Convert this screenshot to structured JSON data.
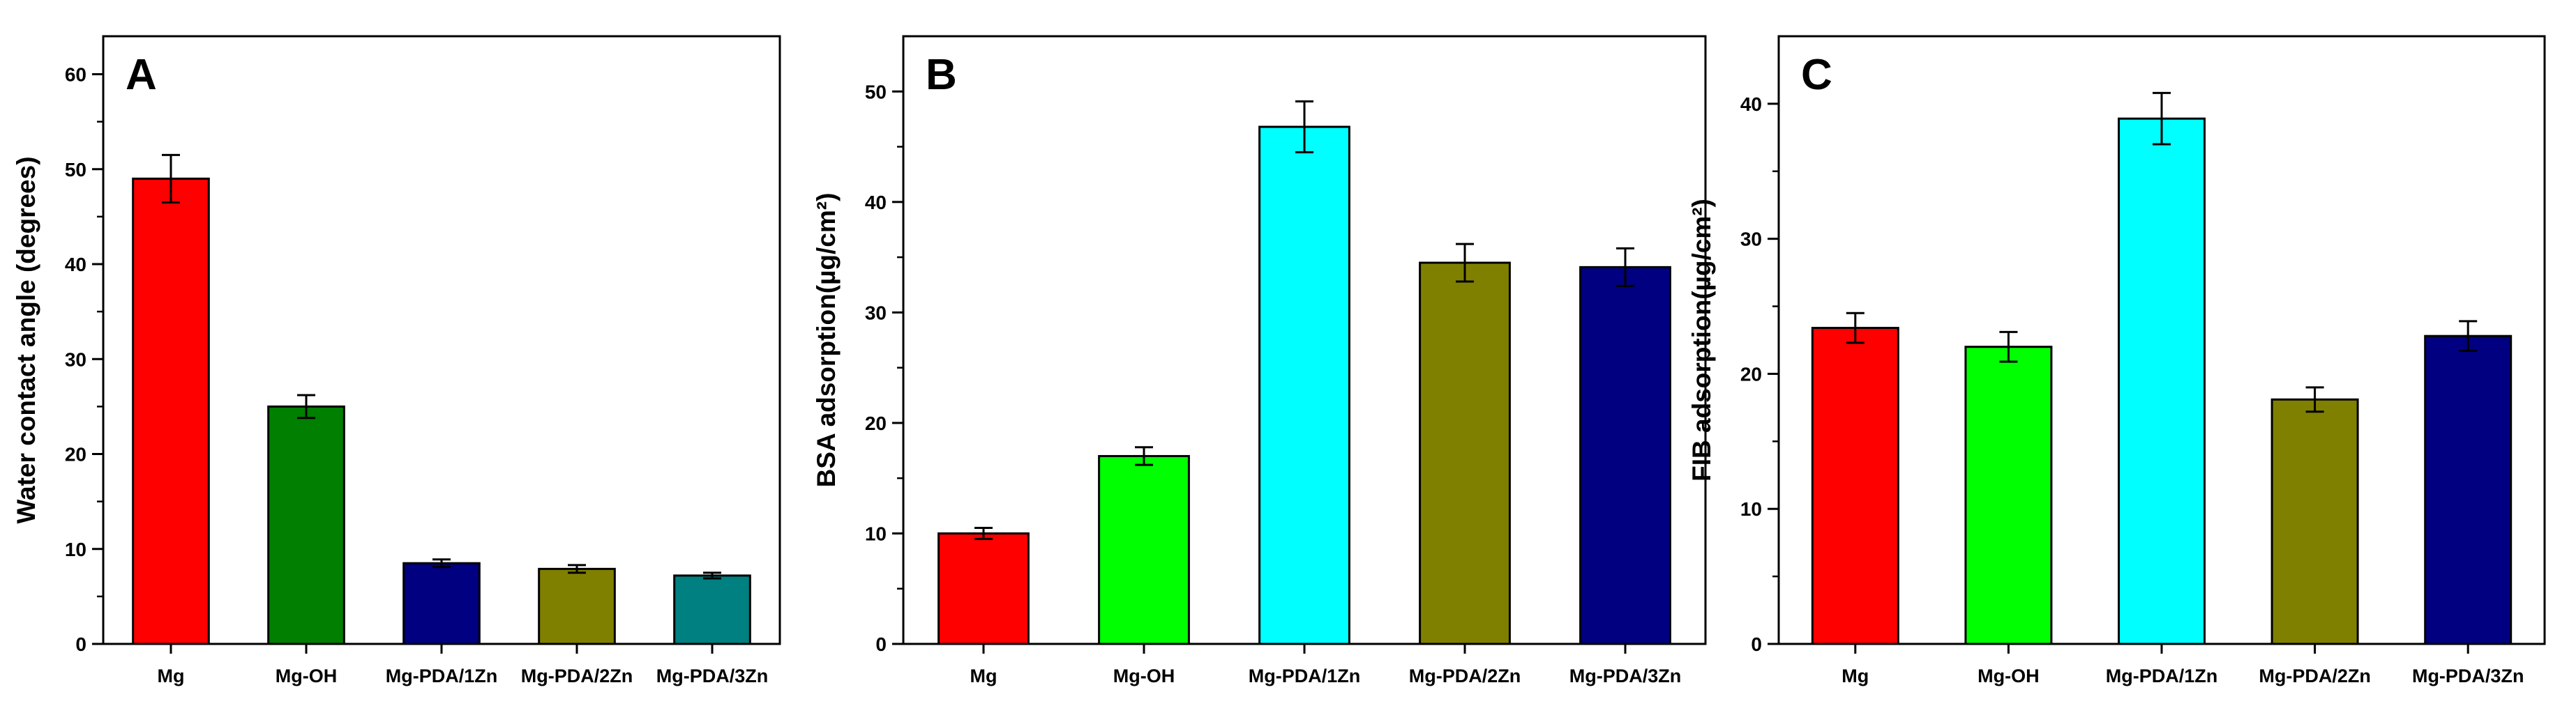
{
  "chart_data": [
    {
      "type": "bar",
      "panel_label": "A",
      "categories": [
        "Mg",
        "Mg-OH",
        "Mg-PDA/1Zn",
        "Mg-PDA/2Zn",
        "Mg-PDA/3Zn"
      ],
      "values": [
        49,
        25,
        8.5,
        7.9,
        7.2
      ],
      "errors": [
        2.5,
        1.2,
        0.4,
        0.4,
        0.3
      ],
      "colors": [
        "#ff0000",
        "#007f00",
        "#000080",
        "#808000",
        "#008080"
      ],
      "ylabel": "Water contact angle (degrees)",
      "ylim": [
        0,
        64
      ],
      "yticks": [
        0,
        10,
        20,
        30,
        40,
        50,
        60
      ]
    },
    {
      "type": "bar",
      "panel_label": "B",
      "categories": [
        "Mg",
        "Mg-OH",
        "Mg-PDA/1Zn",
        "Mg-PDA/2Zn",
        "Mg-PDA/3Zn"
      ],
      "values": [
        10,
        17,
        46.8,
        34.5,
        34.1
      ],
      "errors": [
        0.5,
        0.8,
        2.3,
        1.7,
        1.7
      ],
      "colors": [
        "#ff0000",
        "#00ff00",
        "#00ffff",
        "#808000",
        "#000080"
      ],
      "ylabel": "BSA adsorption(µg/cm²)",
      "ylim": [
        0,
        55
      ],
      "yticks": [
        0,
        10,
        20,
        30,
        40,
        50
      ]
    },
    {
      "type": "bar",
      "panel_label": "C",
      "categories": [
        "Mg",
        "Mg-OH",
        "Mg-PDA/1Zn",
        "Mg-PDA/2Zn",
        "Mg-PDA/3Zn"
      ],
      "values": [
        23.4,
        22,
        38.9,
        18.1,
        22.8
      ],
      "errors": [
        1.1,
        1.1,
        1.9,
        0.9,
        1.1
      ],
      "colors": [
        "#ff0000",
        "#00ff00",
        "#00ffff",
        "#808000",
        "#000080"
      ],
      "ylabel": "FIB adsorption(µg/cm²)",
      "ylim": [
        0,
        45
      ],
      "yticks": [
        0,
        10,
        20,
        30,
        40
      ]
    }
  ]
}
